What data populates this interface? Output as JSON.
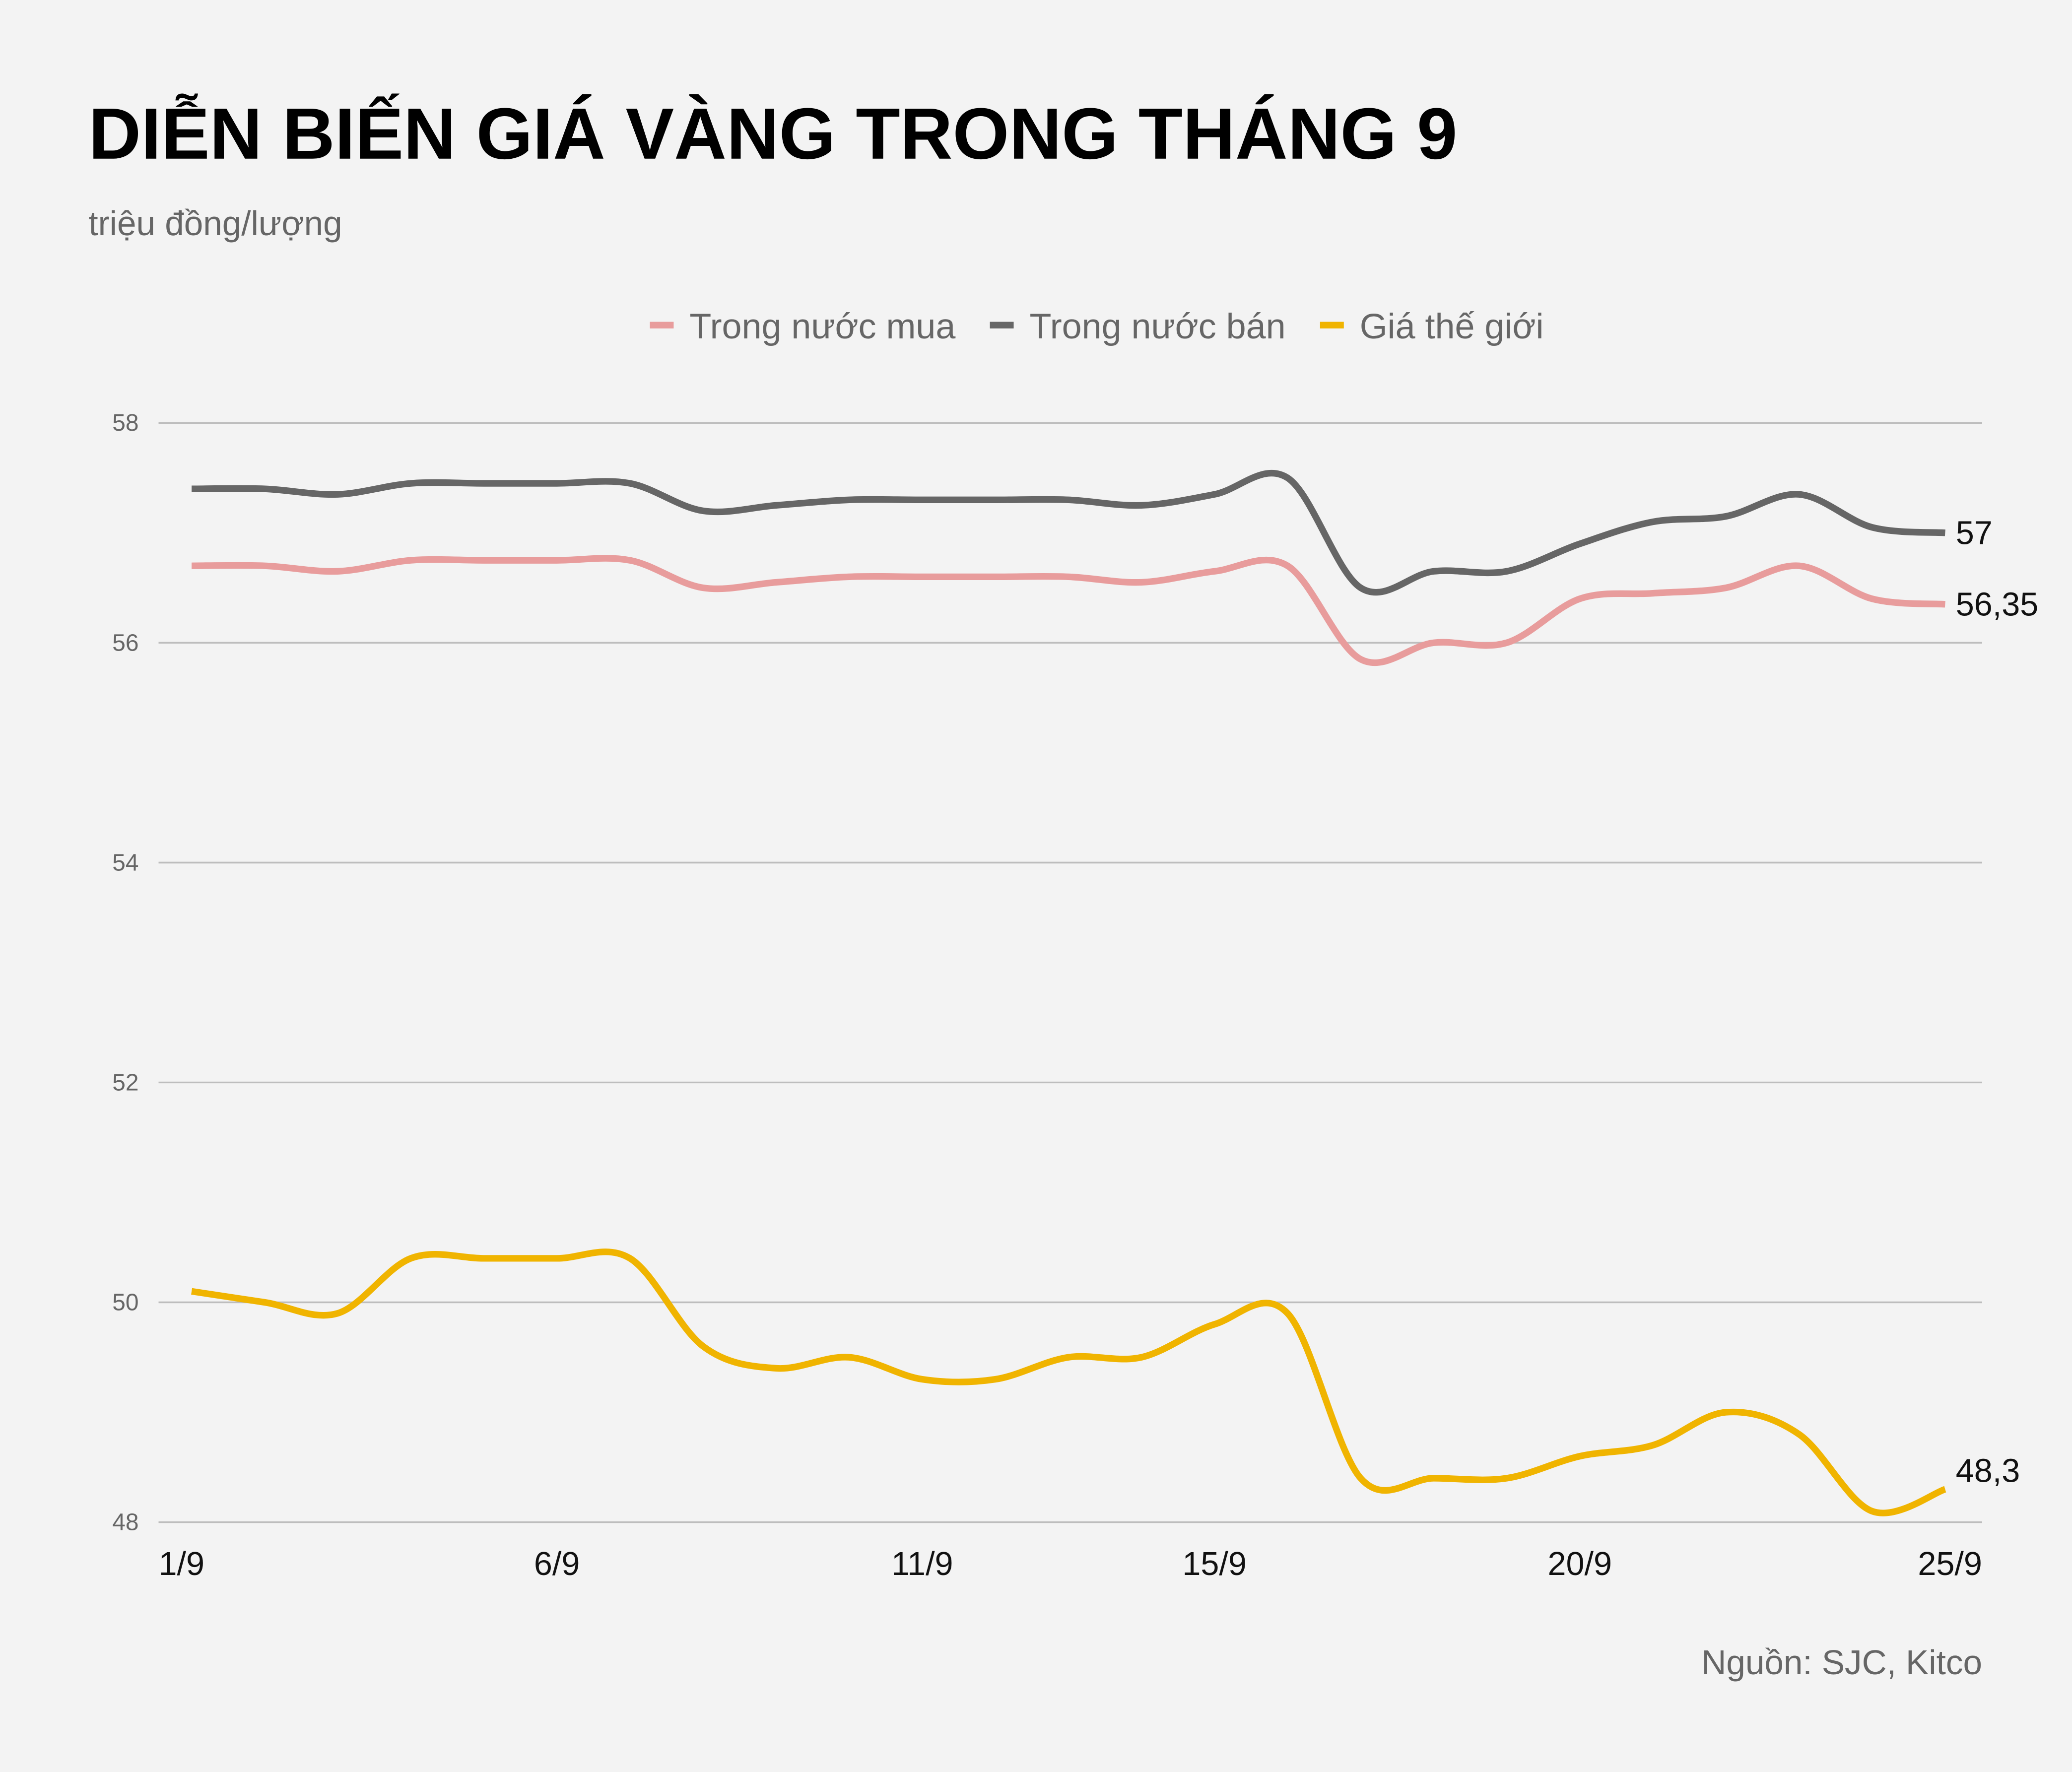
{
  "chart_data": {
    "type": "line",
    "title": "DIỄN BIẾN GIÁ VÀNG TRONG THÁNG 9",
    "subtitle": "triệu đồng/lượng",
    "source": "Nguồn: SJC, Kitco",
    "categories": [
      "1/9",
      null,
      null,
      null,
      null,
      "6/9",
      null,
      null,
      null,
      null,
      "11/9",
      null,
      null,
      null,
      "15/9",
      null,
      null,
      null,
      null,
      "20/9",
      null,
      null,
      null,
      null,
      "25/9"
    ],
    "series": [
      {
        "name": "Trong nước mua",
        "color": "#e89c9c",
        "values": [
          56.7,
          56.7,
          56.65,
          56.75,
          56.75,
          56.75,
          56.75,
          56.5,
          56.55,
          56.6,
          56.6,
          56.6,
          56.6,
          56.55,
          56.65,
          56.7,
          55.85,
          56.0,
          56.0,
          56.4,
          56.45,
          56.5,
          56.7,
          56.4,
          56.35
        ],
        "value_labels": [
          null,
          null,
          null,
          null,
          null,
          null,
          null,
          null,
          null,
          null,
          null,
          null,
          null,
          null,
          null,
          null,
          null,
          null,
          null,
          null,
          null,
          null,
          null,
          null,
          "56,35"
        ]
      },
      {
        "name": "Trong nước bán",
        "color": "#666666",
        "values": [
          57.4,
          57.4,
          57.35,
          57.45,
          57.45,
          57.45,
          57.45,
          57.2,
          57.25,
          57.3,
          57.3,
          57.3,
          57.3,
          57.25,
          57.35,
          57.5,
          56.5,
          56.65,
          56.65,
          56.9,
          57.1,
          57.15,
          57.35,
          57.05,
          57
        ],
        "value_labels": [
          null,
          null,
          null,
          null,
          null,
          null,
          null,
          null,
          null,
          null,
          null,
          null,
          null,
          null,
          null,
          null,
          null,
          null,
          null,
          null,
          null,
          null,
          null,
          null,
          "57"
        ]
      },
      {
        "name": "Giá thế giới",
        "color": "#f0b400",
        "values": [
          50.1,
          50.0,
          49.9,
          50.4,
          50.4,
          50.4,
          50.4,
          49.6,
          49.4,
          49.5,
          49.3,
          49.3,
          49.5,
          49.5,
          49.8,
          49.9,
          48.4,
          48.4,
          48.4,
          48.6,
          48.7,
          49.0,
          48.8,
          48.1,
          48.3
        ],
        "value_labels": [
          null,
          null,
          null,
          null,
          null,
          null,
          null,
          null,
          null,
          null,
          null,
          null,
          null,
          null,
          null,
          null,
          null,
          null,
          null,
          null,
          null,
          null,
          null,
          null,
          "48,3"
        ]
      }
    ],
    "ylim": [
      48,
      58
    ],
    "yticks": [
      48,
      50,
      52,
      54,
      56,
      58
    ],
    "grid": true,
    "legend": "top"
  }
}
